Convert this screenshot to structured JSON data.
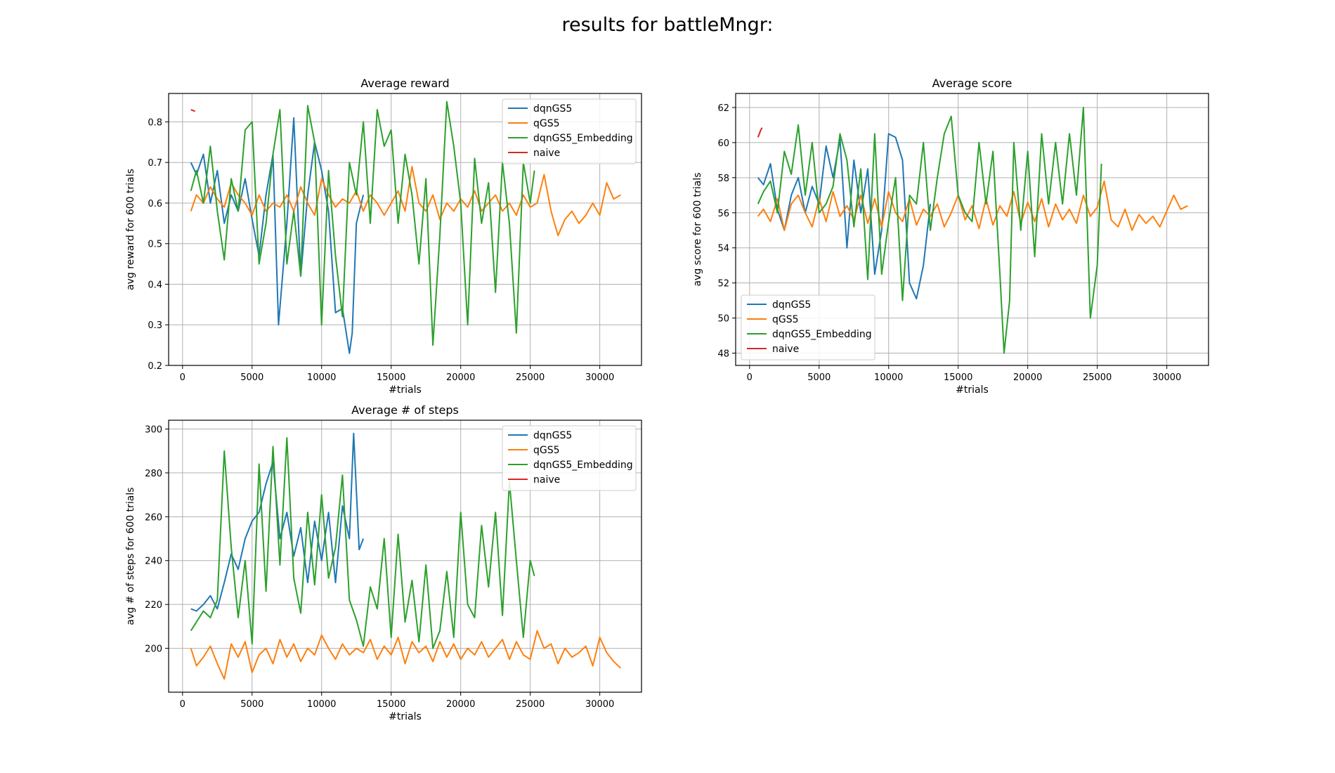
{
  "figure": {
    "suptitle": "results for battleMngr:"
  },
  "colors": {
    "dqnGS5": "#1f77b4",
    "qGS5": "#ff7f0e",
    "dqnGS5_Embedding": "#2ca02c",
    "naive": "#d62728",
    "grid": "#b0b0b0"
  },
  "chart_data": [
    {
      "type": "line",
      "title": "Average reward",
      "xlabel": "#trials",
      "ylabel": "avg reward for 600 trials",
      "xlim": [
        -1000,
        33000
      ],
      "ylim": [
        0.2,
        0.87
      ],
      "xticks": [
        0,
        5000,
        10000,
        15000,
        20000,
        25000,
        30000
      ],
      "yticks": [
        0.2,
        0.3,
        0.4,
        0.5,
        0.6,
        0.7,
        0.8
      ],
      "grid": true,
      "legend_position": "top-right",
      "series": [
        {
          "name": "dqnGS5",
          "x": [
            600,
            1000,
            1500,
            2000,
            2500,
            3000,
            3500,
            4000,
            4500,
            5000,
            5500,
            6000,
            6500,
            6900,
            7500,
            8000,
            8500,
            9000,
            9500,
            10000,
            10500,
            11000,
            11500,
            12000,
            12200,
            12500,
            13000
          ],
          "y": [
            0.7,
            0.67,
            0.72,
            0.6,
            0.68,
            0.55,
            0.62,
            0.58,
            0.66,
            0.56,
            0.47,
            0.62,
            0.72,
            0.3,
            0.55,
            0.81,
            0.42,
            0.62,
            0.75,
            0.68,
            0.58,
            0.33,
            0.34,
            0.23,
            0.28,
            0.55,
            0.62
          ]
        },
        {
          "name": "qGS5",
          "x": [
            600,
            1000,
            1500,
            2000,
            2500,
            3000,
            3500,
            4000,
            4500,
            5000,
            5500,
            6000,
            6500,
            7000,
            7500,
            8000,
            8500,
            9000,
            9500,
            10000,
            10500,
            11000,
            11500,
            12000,
            12500,
            13000,
            13500,
            14000,
            14500,
            15000,
            15500,
            16000,
            16500,
            17000,
            17500,
            18000,
            18500,
            19000,
            19500,
            20000,
            20500,
            21000,
            21500,
            22000,
            22500,
            23000,
            23500,
            24000,
            24500,
            25000,
            25500,
            26000,
            26500,
            27000,
            27500,
            28000,
            28500,
            29000,
            29500,
            30000,
            30500,
            31000,
            31500
          ],
          "y": [
            0.58,
            0.62,
            0.6,
            0.64,
            0.61,
            0.59,
            0.65,
            0.62,
            0.6,
            0.57,
            0.62,
            0.58,
            0.6,
            0.59,
            0.62,
            0.58,
            0.64,
            0.6,
            0.57,
            0.66,
            0.62,
            0.59,
            0.61,
            0.6,
            0.63,
            0.58,
            0.62,
            0.6,
            0.57,
            0.6,
            0.63,
            0.58,
            0.69,
            0.6,
            0.58,
            0.62,
            0.56,
            0.6,
            0.58,
            0.61,
            0.59,
            0.63,
            0.58,
            0.6,
            0.62,
            0.58,
            0.6,
            0.57,
            0.62,
            0.59,
            0.6,
            0.67,
            0.58,
            0.52,
            0.56,
            0.58,
            0.55,
            0.57,
            0.6,
            0.57,
            0.65,
            0.61,
            0.62
          ]
        },
        {
          "name": "dqnGS5_Embedding",
          "x": [
            600,
            1000,
            1500,
            2000,
            2500,
            3000,
            3500,
            4000,
            4500,
            5000,
            5500,
            6000,
            6500,
            7000,
            7500,
            8000,
            8500,
            9000,
            9500,
            10000,
            10500,
            11000,
            11500,
            12000,
            12500,
            13000,
            13500,
            14000,
            14500,
            15000,
            15500,
            16000,
            16500,
            17000,
            17500,
            18000,
            18500,
            19000,
            19500,
            20000,
            20500,
            21000,
            21500,
            22000,
            22500,
            23000,
            23500,
            24000,
            24500,
            25000,
            25300
          ],
          "y": [
            0.63,
            0.68,
            0.6,
            0.74,
            0.58,
            0.46,
            0.66,
            0.58,
            0.78,
            0.8,
            0.45,
            0.55,
            0.72,
            0.83,
            0.45,
            0.58,
            0.42,
            0.84,
            0.75,
            0.3,
            0.68,
            0.47,
            0.32,
            0.7,
            0.62,
            0.8,
            0.55,
            0.83,
            0.74,
            0.78,
            0.55,
            0.72,
            0.62,
            0.45,
            0.66,
            0.25,
            0.52,
            0.85,
            0.74,
            0.6,
            0.3,
            0.71,
            0.55,
            0.65,
            0.38,
            0.7,
            0.55,
            0.28,
            0.7,
            0.6,
            0.68
          ]
        },
        {
          "name": "naive",
          "x": [
            600,
            900
          ],
          "y": [
            0.83,
            0.826
          ]
        }
      ]
    },
    {
      "type": "line",
      "title": "Average score",
      "xlabel": "#trials",
      "ylabel": "avg score for 600 trials",
      "xlim": [
        -1000,
        33000
      ],
      "ylim": [
        47.3,
        62.8
      ],
      "xticks": [
        0,
        5000,
        10000,
        15000,
        20000,
        25000,
        30000
      ],
      "yticks": [
        48,
        50,
        52,
        54,
        56,
        58,
        60,
        62
      ],
      "grid": true,
      "legend_position": "bottom-left",
      "series": [
        {
          "name": "dqnGS5",
          "x": [
            600,
            1000,
            1500,
            2000,
            2500,
            3000,
            3500,
            4000,
            4500,
            5000,
            5500,
            6000,
            6500,
            7000,
            7500,
            8000,
            8500,
            9000,
            9500,
            10000,
            10500,
            11000,
            11500,
            12000,
            12500,
            13000
          ],
          "y": [
            58.0,
            57.6,
            58.8,
            56.2,
            55.0,
            57.0,
            58.0,
            56.0,
            57.5,
            56.5,
            59.8,
            58.0,
            60.2,
            54.0,
            59.0,
            56.0,
            58.5,
            52.5,
            55.0,
            60.5,
            60.3,
            59.0,
            52.0,
            51.1,
            53.0,
            56.5
          ]
        },
        {
          "name": "qGS5",
          "x": [
            600,
            1000,
            1500,
            2000,
            2500,
            3000,
            3500,
            4000,
            4500,
            5000,
            5500,
            6000,
            6500,
            7000,
            7500,
            8000,
            8500,
            9000,
            9500,
            10000,
            10500,
            11000,
            11500,
            12000,
            12500,
            13000,
            13500,
            14000,
            14500,
            15000,
            15500,
            16000,
            16500,
            17000,
            17500,
            18000,
            18500,
            19000,
            19500,
            20000,
            20500,
            21000,
            21500,
            22000,
            22500,
            23000,
            23500,
            24000,
            24500,
            25000,
            25500,
            26000,
            26500,
            27000,
            27500,
            28000,
            28500,
            29000,
            29500,
            30000,
            30500,
            31000,
            31500
          ],
          "y": [
            55.8,
            56.2,
            55.5,
            56.8,
            55.0,
            56.5,
            57.0,
            56.0,
            55.2,
            56.8,
            55.5,
            57.2,
            55.8,
            56.4,
            55.6,
            57.0,
            55.4,
            56.8,
            55.2,
            57.2,
            56.0,
            55.5,
            56.8,
            55.3,
            56.2,
            55.8,
            56.5,
            55.2,
            56.0,
            57.0,
            55.6,
            56.4,
            55.1,
            56.8,
            55.3,
            56.4,
            55.8,
            57.2,
            55.4,
            56.6,
            55.5,
            56.8,
            55.2,
            56.5,
            55.6,
            56.2,
            55.4,
            57.0,
            55.8,
            56.3,
            57.8,
            55.6,
            55.2,
            56.2,
            55.0,
            55.9,
            55.4,
            55.8,
            55.2,
            56.1,
            57.0,
            56.2,
            56.4
          ]
        },
        {
          "name": "dqnGS5_Embedding",
          "x": [
            600,
            1000,
            1500,
            2000,
            2500,
            3000,
            3500,
            4000,
            4500,
            5000,
            5500,
            6000,
            6500,
            7000,
            7500,
            8000,
            8500,
            9000,
            9500,
            10000,
            10500,
            11000,
            11500,
            12000,
            12500,
            13000,
            13500,
            14000,
            14500,
            15000,
            15500,
            16000,
            16500,
            17000,
            17500,
            18000,
            18300,
            18700,
            19000,
            19500,
            20000,
            20500,
            21000,
            21500,
            22000,
            22500,
            23000,
            23500,
            24000,
            24500,
            25000,
            25300
          ],
          "y": [
            56.5,
            57.2,
            57.8,
            56.0,
            59.5,
            58.2,
            61.0,
            57.0,
            60.0,
            56.0,
            56.5,
            57.5,
            60.5,
            59.0,
            55.2,
            58.5,
            52.2,
            60.5,
            52.5,
            55.5,
            58.0,
            51.0,
            57.0,
            56.5,
            60.0,
            55.0,
            58.0,
            60.5,
            61.5,
            57.0,
            56.0,
            55.5,
            60.0,
            56.5,
            59.5,
            52.5,
            48.0,
            51.0,
            60.0,
            55.0,
            59.5,
            53.5,
            60.5,
            56.5,
            60.0,
            56.5,
            60.5,
            57.0,
            62.0,
            50.0,
            53.0,
            58.8
          ]
        },
        {
          "name": "naive",
          "x": [
            600,
            700,
            800,
            900
          ],
          "y": [
            60.3,
            60.5,
            60.7,
            60.85
          ]
        }
      ]
    },
    {
      "type": "line",
      "title": "Average # of steps",
      "xlabel": "#trials",
      "ylabel": "avg # of steps for 600 trials",
      "xlim": [
        -1000,
        33000
      ],
      "ylim": [
        180,
        304
      ],
      "xticks": [
        0,
        5000,
        10000,
        15000,
        20000,
        25000,
        30000
      ],
      "yticks": [
        200,
        220,
        240,
        260,
        280,
        300
      ],
      "grid": true,
      "legend_position": "top-right",
      "series": [
        {
          "name": "dqnGS5",
          "x": [
            600,
            1000,
            1500,
            2000,
            2500,
            3000,
            3500,
            4000,
            4500,
            5000,
            5500,
            6000,
            6500,
            7000,
            7500,
            8000,
            8500,
            9000,
            9500,
            10000,
            10500,
            11000,
            11500,
            12000,
            12300,
            12700,
            13000
          ],
          "y": [
            218,
            217,
            220,
            224,
            218,
            230,
            243,
            236,
            250,
            258,
            262,
            275,
            285,
            250,
            262,
            242,
            255,
            230,
            258,
            240,
            262,
            230,
            265,
            250,
            298,
            245,
            250
          ]
        },
        {
          "name": "qGS5",
          "x": [
            600,
            1000,
            1500,
            2000,
            2500,
            3000,
            3500,
            4000,
            4500,
            5000,
            5500,
            6000,
            6500,
            7000,
            7500,
            8000,
            8500,
            9000,
            9500,
            10000,
            10500,
            11000,
            11500,
            12000,
            12500,
            13000,
            13500,
            14000,
            14500,
            15000,
            15500,
            16000,
            16500,
            17000,
            17500,
            18000,
            18500,
            19000,
            19500,
            20000,
            20500,
            21000,
            21500,
            22000,
            22500,
            23000,
            23500,
            24000,
            24500,
            25000,
            25500,
            26000,
            26500,
            27000,
            27500,
            28000,
            28500,
            29000,
            29500,
            30000,
            30500,
            31000,
            31500
          ],
          "y": [
            200,
            192,
            196,
            201,
            193,
            186,
            202,
            196,
            203,
            189,
            197,
            200,
            193,
            204,
            196,
            202,
            194,
            200,
            197,
            206,
            200,
            195,
            202,
            197,
            200,
            198,
            204,
            195,
            201,
            197,
            205,
            193,
            203,
            198,
            201,
            194,
            203,
            196,
            202,
            195,
            200,
            197,
            203,
            196,
            200,
            204,
            195,
            203,
            197,
            195,
            208,
            200,
            202,
            193,
            200,
            196,
            198,
            201,
            192,
            205,
            198,
            194,
            191
          ]
        },
        {
          "name": "dqnGS5_Embedding",
          "x": [
            600,
            1000,
            1500,
            2000,
            2500,
            3000,
            3500,
            4000,
            4500,
            5000,
            5500,
            6000,
            6500,
            7000,
            7500,
            8000,
            8500,
            9000,
            9500,
            10000,
            10500,
            11000,
            11500,
            12000,
            12500,
            13000,
            13500,
            14000,
            14500,
            15000,
            15500,
            16000,
            16500,
            17000,
            17500,
            18000,
            18500,
            19000,
            19500,
            20000,
            20500,
            21000,
            21500,
            22000,
            22500,
            23000,
            23500,
            24000,
            24500,
            25000,
            25300
          ],
          "y": [
            208,
            212,
            217,
            214,
            222,
            290,
            246,
            214,
            240,
            202,
            284,
            226,
            292,
            238,
            296,
            232,
            216,
            262,
            229,
            270,
            232,
            246,
            279,
            222,
            213,
            201,
            228,
            218,
            250,
            205,
            252,
            212,
            231,
            203,
            238,
            200,
            208,
            235,
            205,
            262,
            220,
            214,
            256,
            228,
            262,
            215,
            276,
            240,
            205,
            240,
            233
          ]
        },
        {
          "name": "naive",
          "x": [],
          "y": []
        }
      ]
    }
  ]
}
